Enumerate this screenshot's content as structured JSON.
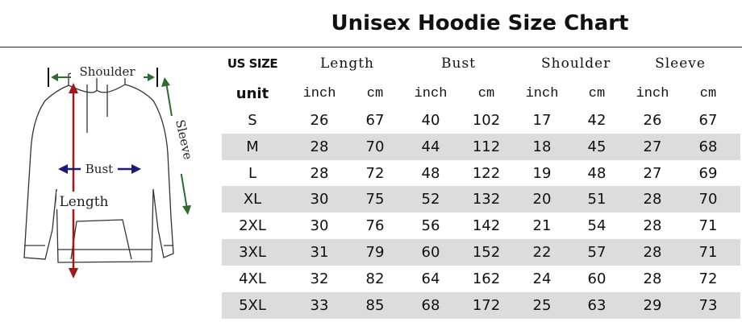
{
  "title": "Unisex Hoodie Size Chart",
  "diagram": {
    "labels": {
      "shoulder": "Shoulder",
      "bust": "Bust",
      "length": "Length",
      "sleeve": "Sleeve"
    },
    "colors": {
      "shoulder": "#2e6b2e",
      "sleeve": "#2e6b2e",
      "bust": "#1a1a7a",
      "length": "#a01818"
    }
  },
  "table": {
    "size_header": "US SIZE",
    "unit_header": "unit",
    "measures": [
      "Length",
      "Bust",
      "Shoulder",
      "Sleeve"
    ],
    "units": [
      "inch",
      "cm",
      "inch",
      "cm",
      "inch",
      "cm",
      "inch",
      "cm"
    ],
    "shade_color": "#dcdcdc",
    "rows": [
      {
        "size": "S",
        "values": [
          "26",
          "67",
          "40",
          "102",
          "17",
          "42",
          "26",
          "67"
        ]
      },
      {
        "size": "M",
        "values": [
          "28",
          "70",
          "44",
          "112",
          "18",
          "45",
          "27",
          "68"
        ]
      },
      {
        "size": "L",
        "values": [
          "28",
          "72",
          "48",
          "122",
          "19",
          "48",
          "27",
          "69"
        ]
      },
      {
        "size": "XL",
        "values": [
          "30",
          "75",
          "52",
          "132",
          "20",
          "51",
          "28",
          "70"
        ]
      },
      {
        "size": "2XL",
        "values": [
          "30",
          "76",
          "56",
          "142",
          "21",
          "54",
          "28",
          "71"
        ]
      },
      {
        "size": "3XL",
        "values": [
          "31",
          "79",
          "60",
          "152",
          "22",
          "57",
          "28",
          "71"
        ]
      },
      {
        "size": "4XL",
        "values": [
          "32",
          "82",
          "64",
          "162",
          "24",
          "60",
          "28",
          "72"
        ]
      },
      {
        "size": "5XL",
        "values": [
          "33",
          "85",
          "68",
          "172",
          "25",
          "63",
          "29",
          "73"
        ]
      }
    ]
  }
}
